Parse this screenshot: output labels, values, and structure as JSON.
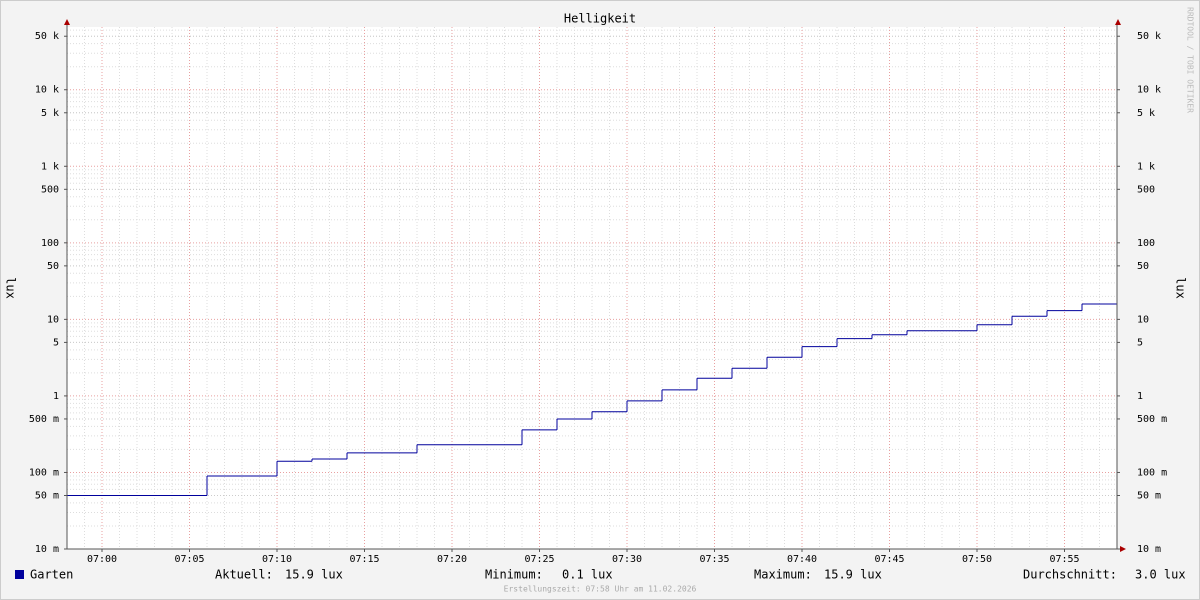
{
  "chart_data": {
    "type": "line",
    "step": true,
    "title": "Helligkeit",
    "y_label": "lux",
    "x": [
      "06:58",
      "07:06",
      "07:10",
      "07:12",
      "07:14",
      "07:18",
      "07:24",
      "07:26",
      "07:28",
      "07:30",
      "07:32",
      "07:34",
      "07:36",
      "07:38",
      "07:40",
      "07:42",
      "07:44",
      "07:46",
      "07:50",
      "07:52",
      "07:54",
      "07:56"
    ],
    "series": [
      {
        "name": "Garten",
        "color": "#00009c",
        "values": [
          0.05,
          0.09,
          0.14,
          0.15,
          0.18,
          0.23,
          0.36,
          0.5,
          0.62,
          0.86,
          1.2,
          1.7,
          2.3,
          3.2,
          4.4,
          5.6,
          6.3,
          7.1,
          8.5,
          11,
          13,
          15.9
        ]
      }
    ],
    "xlim": [
      "06:58",
      "07:58"
    ],
    "xticks": [
      "07:00",
      "07:05",
      "07:10",
      "07:15",
      "07:20",
      "07:25",
      "07:30",
      "07:35",
      "07:40",
      "07:45",
      "07:50",
      "07:55"
    ],
    "ylim": [
      0.01,
      66000
    ],
    "log_y": true,
    "grid": true,
    "yticks": [
      {
        "value": 0.01,
        "label": "10 m"
      },
      {
        "value": 0.05,
        "label": "50 m"
      },
      {
        "value": 0.1,
        "label": "100 m"
      },
      {
        "value": 0.5,
        "label": "500 m"
      },
      1,
      5,
      10,
      50,
      100,
      500,
      {
        "value": 1000,
        "label": "1 k"
      },
      {
        "value": 5000,
        "label": "5 k"
      },
      {
        "value": 10000,
        "label": "10 k"
      },
      {
        "value": 50000,
        "label": "50 k"
      }
    ],
    "legend_stats": [
      {
        "label": "Aktuell:",
        "value": "15.9 lux"
      },
      {
        "label": "Minimum:",
        "value": "0.1 lux"
      },
      {
        "label": "Maximum:",
        "value": "15.9 lux"
      },
      {
        "label": "Durchschnitt:",
        "value": "3.0 lux"
      }
    ],
    "footer": "Erstellungszeit: 07:58 Uhr am 11.02.2026",
    "watermark": "RRDTOOL / TOBI OETIKER"
  }
}
